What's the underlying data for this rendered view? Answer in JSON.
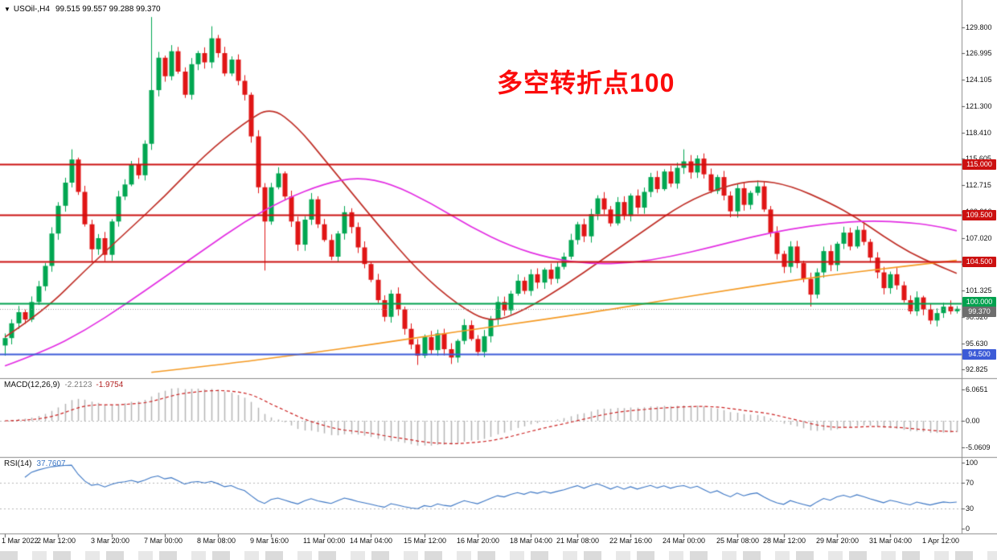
{
  "window": {
    "dropdown_icon": "▼",
    "symbol_title": "USOil-,H4",
    "ohlc_text": "99.515 99.557 99.288 99.370"
  },
  "annotation": {
    "text": "多空转折点100",
    "color": "#fb0b0b"
  },
  "chart_data": [
    {
      "type": "candlestick",
      "symbol": "USOil-",
      "timeframe": "H4",
      "title": "USOil-,H4 99.515 99.557 99.288 99.370",
      "ylim": [
        92.825,
        129.8
      ],
      "grid": false,
      "bull_color": "#00a651",
      "bear_color": "#e01515",
      "y_ticks": [
        "129.800",
        "126.995",
        "124.105",
        "121.300",
        "118.410",
        "115.605",
        "112.715",
        "109.910",
        "107.020",
        "104.215",
        "101.325",
        "98.520",
        "95.630",
        "92.825"
      ],
      "first_open": 95.4,
      "closes": [
        96.2,
        97.8,
        99.0,
        98.2,
        100.1,
        101.8,
        104.0,
        107.5,
        110.5,
        113.0,
        115.5,
        112.0,
        108.5,
        105.8,
        107.0,
        105.2,
        108.8,
        111.5,
        112.8,
        115.0,
        113.8,
        117.2,
        123.0,
        126.5,
        124.5,
        127.2,
        125.0,
        122.5,
        125.8,
        127.0,
        126.0,
        128.6,
        127.0,
        124.8,
        126.3,
        124.0,
        122.5,
        118.0,
        112.5,
        108.8,
        112.5,
        114.0,
        111.5,
        108.8,
        106.3,
        109.0,
        111.2,
        108.5,
        106.8,
        105.0,
        107.5,
        109.8,
        108.2,
        106.0,
        104.2,
        102.5,
        100.3,
        98.5,
        101.0,
        99.3,
        97.2,
        95.5,
        94.3,
        96.3,
        94.9,
        96.7,
        95.0,
        94.1,
        95.9,
        97.6,
        96.1,
        94.7,
        96.4,
        98.3,
        100.1,
        99.2,
        101.0,
        102.4,
        101.3,
        103.1,
        102.2,
        103.6,
        102.6,
        103.9,
        105.0,
        106.8,
        108.5,
        107.2,
        109.6,
        111.3,
        110.1,
        108.6,
        110.9,
        109.4,
        111.6,
        110.3,
        112.0,
        113.6,
        112.3,
        114.2,
        112.9,
        114.6,
        115.3,
        114.1,
        115.6,
        113.9,
        112.1,
        113.6,
        111.6,
        109.9,
        112.4,
        110.6,
        111.9,
        112.6,
        110.1,
        107.6,
        105.3,
        103.9,
        106.1,
        104.3,
        102.6,
        100.9,
        103.3,
        105.6,
        104.1,
        106.4,
        107.6,
        106.1,
        107.9,
        106.6,
        104.9,
        103.3,
        101.6,
        103.1,
        101.9,
        100.3,
        99.1,
        100.6,
        99.3,
        98.1,
        98.9,
        99.6,
        99.1,
        99.37
      ],
      "wick_overrides": {
        "0": {
          "low": 94.3
        },
        "10": {
          "high": 116.6
        },
        "13": {
          "low": 104.4
        },
        "15": {
          "low": 104.5
        },
        "22": {
          "high": 130.9
        },
        "31": {
          "high": 129.9
        },
        "39": {
          "low": 103.5
        },
        "62": {
          "low": 93.3
        },
        "67": {
          "low": 93.4
        },
        "102": {
          "high": 116.6
        },
        "121": {
          "low": 99.6
        },
        "139": {
          "low": 97.7
        }
      },
      "levels": [
        {
          "price": 115.0,
          "label": "115.000",
          "color": "#cc1111",
          "dy": 0
        },
        {
          "price": 109.5,
          "label": "109.500",
          "color": "#cc1111",
          "dy": 0
        },
        {
          "price": 104.5,
          "label": "104.500",
          "color": "#cc1111",
          "dy": 0
        },
        {
          "price": 100.0,
          "label": "100.000",
          "color": "#00a14e",
          "dy": -2
        },
        {
          "price": 94.5,
          "label": "94.500",
          "color": "#3c5bd7",
          "dy": 0
        }
      ],
      "bid": {
        "price": 99.37,
        "label": "99.370",
        "color": "#6e6e6e",
        "dy": 3
      },
      "overlays": [
        {
          "name": "ma-fast-red",
          "color": "#c03028",
          "points": [
            [
              0,
              96.3
            ],
            [
              6,
              99.2
            ],
            [
              12,
              103.5
            ],
            [
              18,
              107.5
            ],
            [
              24,
              111.5
            ],
            [
              30,
              116.0
            ],
            [
              36,
              119.5
            ],
            [
              40,
              121.2
            ],
            [
              44,
              119.0
            ],
            [
              48,
              115.5
            ],
            [
              52,
              112.0
            ],
            [
              56,
              108.5
            ],
            [
              62,
              103.5
            ],
            [
              68,
              99.8
            ],
            [
              73,
              97.8
            ],
            [
              78,
              99.2
            ],
            [
              84,
              101.8
            ],
            [
              90,
              104.8
            ],
            [
              96,
              107.8
            ],
            [
              102,
              110.8
            ],
            [
              108,
              112.6
            ],
            [
              113,
              113.3
            ],
            [
              118,
              112.7
            ],
            [
              124,
              110.8
            ],
            [
              128,
              109.2
            ],
            [
              132,
              107.2
            ],
            [
              136,
              105.4
            ],
            [
              140,
              104.1
            ],
            [
              143,
              103.2
            ]
          ]
        },
        {
          "name": "ma-mid-magenta",
          "color": "#e32ee3",
          "points": [
            [
              0,
              93.2
            ],
            [
              6,
              94.8
            ],
            [
              12,
              97.0
            ],
            [
              18,
              99.8
            ],
            [
              24,
              102.8
            ],
            [
              30,
              105.8
            ],
            [
              36,
              108.8
            ],
            [
              42,
              111.2
            ],
            [
              48,
              112.9
            ],
            [
              53,
              113.6
            ],
            [
              58,
              112.9
            ],
            [
              64,
              110.8
            ],
            [
              70,
              108.2
            ],
            [
              76,
              106.1
            ],
            [
              82,
              104.8
            ],
            [
              88,
              104.2
            ],
            [
              94,
              104.3
            ],
            [
              100,
              105.0
            ],
            [
              106,
              106.0
            ],
            [
              112,
              107.1
            ],
            [
              118,
              108.0
            ],
            [
              124,
              108.6
            ],
            [
              130,
              108.9
            ],
            [
              136,
              108.7
            ],
            [
              140,
              108.3
            ],
            [
              143,
              107.8
            ]
          ]
        },
        {
          "name": "ma-slow-orange",
          "color": "#f59a23",
          "points": [
            [
              22,
              92.5
            ],
            [
              32,
              93.3
            ],
            [
              44,
              94.4
            ],
            [
              56,
              95.6
            ],
            [
              68,
              96.9
            ],
            [
              80,
              98.1
            ],
            [
              92,
              99.4
            ],
            [
              100,
              100.4
            ],
            [
              108,
              101.3
            ],
            [
              116,
              102.2
            ],
            [
              124,
              103.0
            ],
            [
              132,
              103.7
            ],
            [
              138,
              104.2
            ],
            [
              143,
              104.6
            ]
          ]
        }
      ],
      "x_labels": [
        {
          "t": "1 Mar 2022",
          "i": 0
        },
        {
          "t": "2 Mar 12:00",
          "i": 8
        },
        {
          "t": "3 Mar 20:00",
          "i": 16
        },
        {
          "t": "7 Mar 00:00",
          "i": 24
        },
        {
          "t": "8 Mar 08:00",
          "i": 32
        },
        {
          "t": "9 Mar 16:00",
          "i": 40
        },
        {
          "t": "11 Mar 00:00",
          "i": 48
        },
        {
          "t": "14 Mar 04:00",
          "i": 55
        },
        {
          "t": "15 Mar 12:00",
          "i": 63
        },
        {
          "t": "16 Mar 20:00",
          "i": 71
        },
        {
          "t": "18 Mar 04:00",
          "i": 79
        },
        {
          "t": "21 Mar 08:00",
          "i": 86
        },
        {
          "t": "22 Mar 16:00",
          "i": 94
        },
        {
          "t": "24 Mar 00:00",
          "i": 102
        },
        {
          "t": "25 Mar 08:00",
          "i": 110
        },
        {
          "t": "28 Mar 12:00",
          "i": 117
        },
        {
          "t": "29 Mar 20:00",
          "i": 125
        },
        {
          "t": "31 Mar 04:00",
          "i": 133
        },
        {
          "t": "1 Apr 12:00",
          "i": 141
        }
      ]
    },
    {
      "type": "macd",
      "name": "MACD(12,26,9)",
      "fast": 12,
      "slow": 26,
      "signal": 9,
      "main_value": "-2.2123",
      "signal_value": "-1.9754",
      "y_ticks": [
        {
          "t": "6.0651",
          "v": 6.0651
        },
        {
          "t": "0.00",
          "v": 0
        },
        {
          "t": "-5.0609",
          "v": -5.0609
        }
      ],
      "hist_color": "#b4b4b4",
      "signal_color": "#cc2222"
    },
    {
      "type": "rsi",
      "name": "RSI(14)",
      "period": 14,
      "value": "37.7607",
      "y_ticks": [
        {
          "t": "100",
          "v": 100
        },
        {
          "t": "70",
          "v": 70
        },
        {
          "t": "30",
          "v": 30
        },
        {
          "t": "0",
          "v": 0
        }
      ],
      "levels": [
        70,
        30
      ],
      "line_color": "#3a75c4"
    }
  ]
}
